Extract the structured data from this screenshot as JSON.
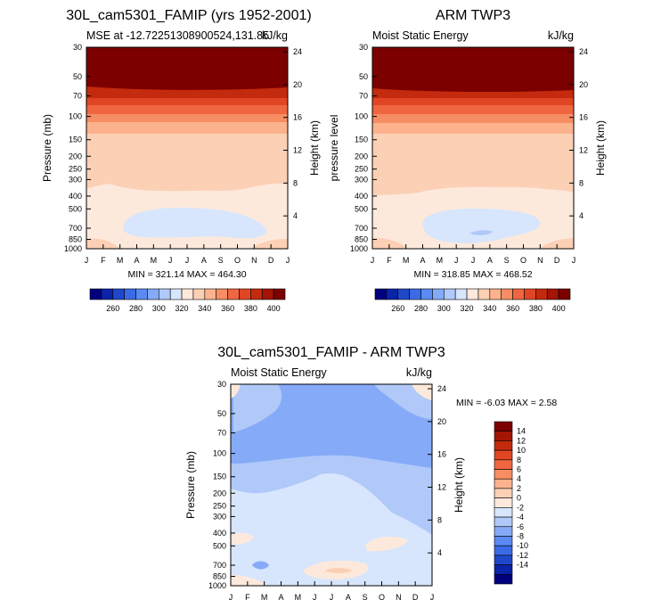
{
  "chart_data": [
    {
      "type": "heatmap",
      "title": "30L_cam5301_FAMIP (yrs 1952-2001)",
      "left_subtitle": "MSE at -12.72251308900524,131.85",
      "right_subtitle": "kJ/kg",
      "ylabel": "Pressure (mb)",
      "ylabel_right": "Height (km)",
      "x_ticks": [
        "J",
        "F",
        "M",
        "A",
        "M",
        "J",
        "J",
        "A",
        "S",
        "O",
        "N",
        "D",
        "J"
      ],
      "y_ticks": [
        "30",
        "50",
        "70",
        "100",
        "150",
        "200",
        "250",
        "300",
        "400",
        "500",
        "700",
        "850",
        "1000"
      ],
      "y_ticks_right": [
        "24",
        "20",
        "16",
        "12",
        "8",
        "4"
      ],
      "stats": "MIN = 321.14  MAX = 464.30",
      "levels_hPa": [
        1000,
        850,
        700,
        500,
        400,
        300,
        250,
        200,
        150,
        100,
        70,
        50,
        30
      ],
      "monthly_bands_kJkg": {
        "1000": [
          345,
          345,
          345,
          342,
          340,
          338,
          338,
          338,
          340,
          342,
          345,
          345,
          345
        ],
        "850": [
          338,
          338,
          336,
          334,
          332,
          330,
          330,
          330,
          332,
          334,
          336,
          338,
          338
        ],
        "700": [
          334,
          332,
          330,
          328,
          325,
          324,
          324,
          324,
          325,
          327,
          330,
          332,
          334
        ],
        "500": [
          336,
          336,
          334,
          330,
          328,
          326,
          326,
          326,
          328,
          330,
          334,
          336,
          336
        ],
        "300": [
          340,
          340,
          340,
          342,
          344,
          344,
          344,
          344,
          342,
          341,
          340,
          340,
          340
        ],
        "200": [
          345,
          345,
          345,
          346,
          346,
          346,
          346,
          346,
          346,
          345,
          345,
          345,
          345
        ],
        "150": [
          350,
          350,
          350,
          350,
          350,
          350,
          350,
          350,
          350,
          350,
          350,
          350,
          350
        ],
        "100": [
          362,
          362,
          362,
          362,
          362,
          362,
          362,
          362,
          362,
          362,
          362,
          362,
          362
        ],
        "70": [
          376,
          376,
          376,
          376,
          376,
          376,
          376,
          376,
          376,
          376,
          376,
          376,
          376
        ],
        "50": [
          392,
          392,
          392,
          392,
          392,
          392,
          392,
          392,
          392,
          392,
          392,
          392,
          392
        ],
        "30": [
          420,
          420,
          420,
          420,
          420,
          420,
          420,
          420,
          420,
          420,
          420,
          420,
          420
        ]
      }
    },
    {
      "type": "heatmap",
      "title": "ARM TWP3",
      "left_subtitle": "Moist Static Energy",
      "right_subtitle": "kJ/kg",
      "ylabel": "pressure level",
      "ylabel_right": "Height (km)",
      "x_ticks": [
        "J",
        "F",
        "M",
        "A",
        "M",
        "J",
        "J",
        "A",
        "S",
        "O",
        "N",
        "D",
        "J"
      ],
      "y_ticks": [
        "30",
        "50",
        "70",
        "100",
        "150",
        "200",
        "250",
        "300",
        "400",
        "500",
        "700",
        "850",
        "1000"
      ],
      "y_ticks_right": [
        "24",
        "20",
        "16",
        "12",
        "8",
        "4"
      ],
      "stats": "MIN = 318.85  MAX = 468.52"
    },
    {
      "type": "heatmap",
      "title": "30L_cam5301_FAMIP - ARM TWP3",
      "left_subtitle": "Moist Static Energy",
      "right_subtitle": "kJ/kg",
      "ylabel": "Pressure (mb)",
      "ylabel_right": "Height (km)",
      "x_ticks": [
        "J",
        "F",
        "M",
        "A",
        "M",
        "J",
        "J",
        "A",
        "S",
        "O",
        "N",
        "D",
        "J"
      ],
      "y_ticks": [
        "30",
        "50",
        "70",
        "100",
        "150",
        "200",
        "250",
        "300",
        "400",
        "500",
        "700",
        "850",
        "1000"
      ],
      "y_ticks_right": [
        "24",
        "20",
        "16",
        "12",
        "8",
        "4"
      ],
      "stats": "MIN =  -6.03 MAX =   2.58"
    }
  ],
  "colorbar_abs": {
    "orientation": "horizontal",
    "labels": [
      "260",
      "280",
      "300",
      "320",
      "340",
      "360",
      "380",
      "400"
    ],
    "colors": [
      "#00007f",
      "#0b23a8",
      "#1f48c9",
      "#3a6ae6",
      "#5b8af3",
      "#85aaf7",
      "#b0c9f9",
      "#d7e6fc",
      "#fde9dc",
      "#fcd0b5",
      "#fbb28d",
      "#f78d63",
      "#ef6640",
      "#e04623",
      "#c42a0d",
      "#a31504",
      "#7c0000"
    ]
  },
  "colorbar_diff": {
    "orientation": "vertical",
    "labels": [
      "14",
      "12",
      "10",
      "8",
      "6",
      "4",
      "2",
      "0",
      "-2",
      "-4",
      "-6",
      "-8",
      "-10",
      "-12",
      "-14"
    ],
    "colors": [
      "#7c0000",
      "#a31504",
      "#c42a0d",
      "#e04623",
      "#ef6640",
      "#f78d63",
      "#fbb28d",
      "#fcd0b5",
      "#fde9dc",
      "#d7e6fc",
      "#b0c9f9",
      "#85aaf7",
      "#5b8af3",
      "#3a6ae6",
      "#1f48c9",
      "#0b23a8",
      "#00007f"
    ]
  }
}
